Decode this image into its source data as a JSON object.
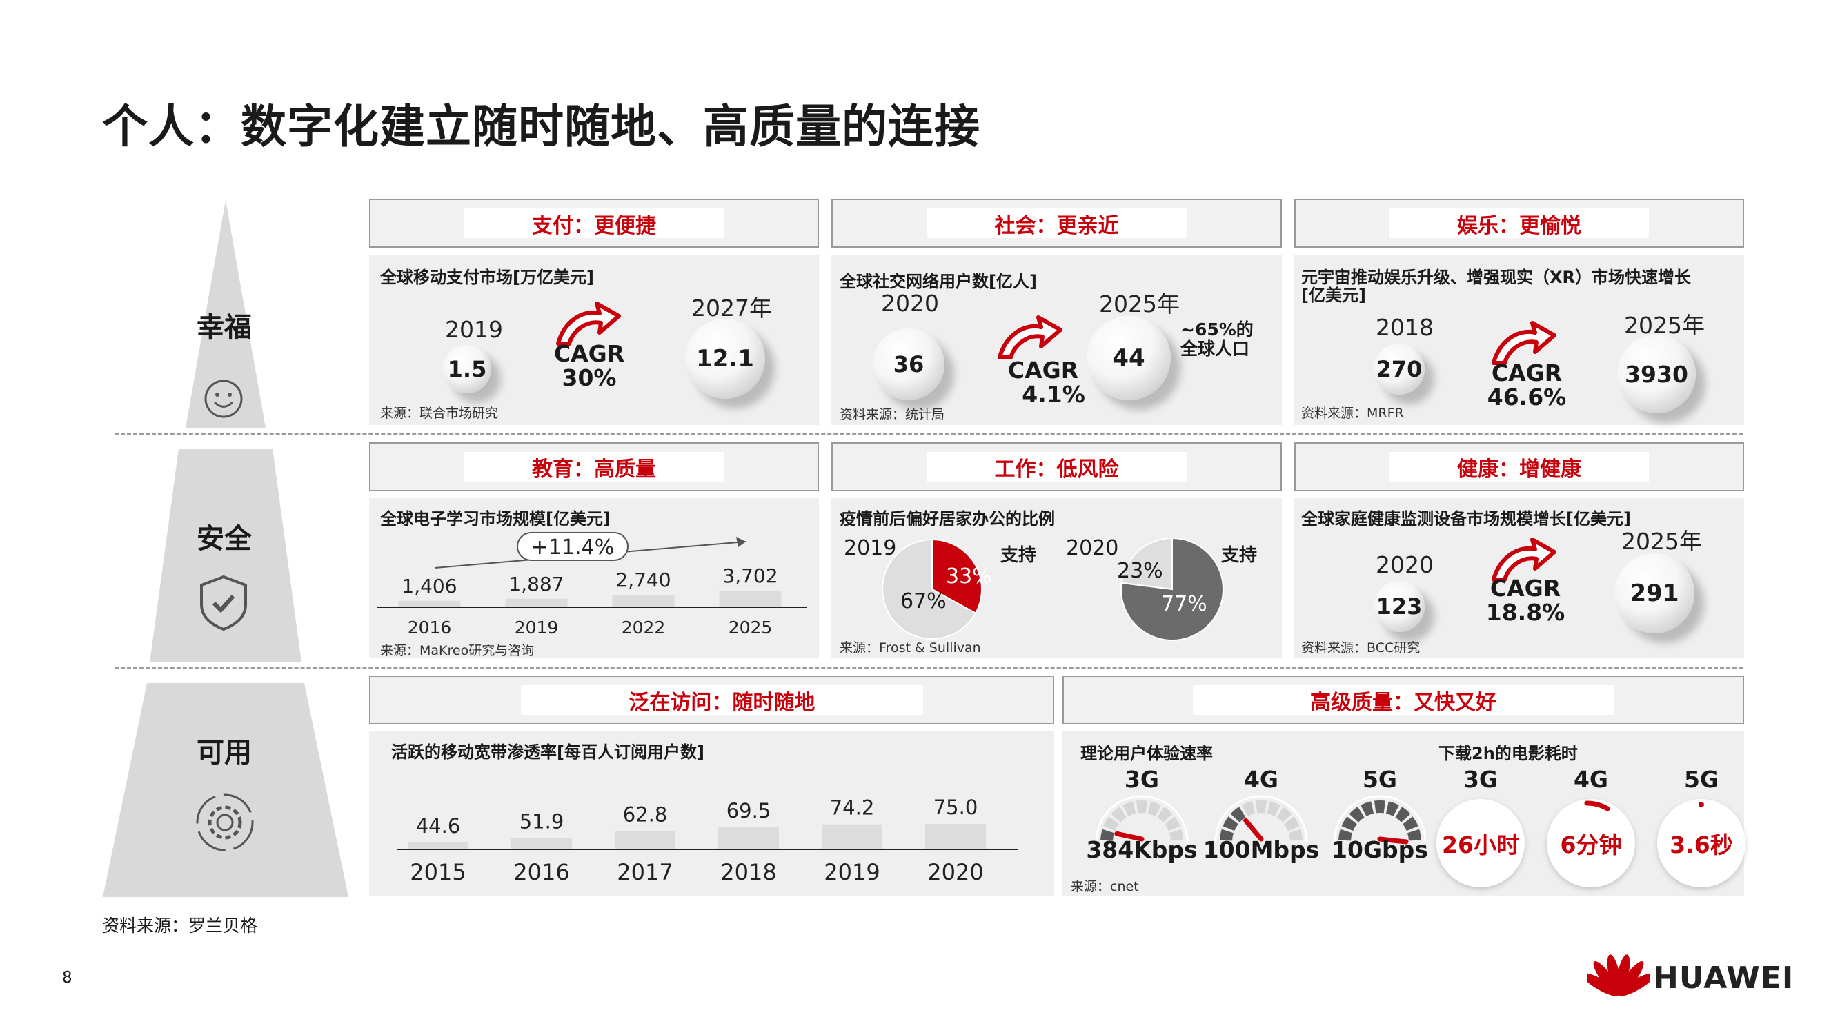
{
  "page_title": "个人：数字化建立随时随地、高质量的连接",
  "pyramid": [
    {
      "label": "幸福",
      "icon": "smiley-icon"
    },
    {
      "label": "安全",
      "icon": "shield-check-icon"
    },
    {
      "label": "可用",
      "icon": "gear-cycle-icon"
    }
  ],
  "cards": {
    "pay": {
      "header": "支付：更便捷",
      "title": "全球移动支付市场[万亿美元]",
      "y1": "2019",
      "v1": "1.5",
      "y2": "2027年",
      "v2": "12.1",
      "cagr_label": "CAGR",
      "cagr_value": "30%",
      "source": "来源：联合市场研究"
    },
    "social": {
      "header": "社会：更亲近",
      "title": "全球社交网络用户数[亿人]",
      "y1": "2020",
      "v1": "36",
      "y2": "2025年",
      "v2": "44",
      "cagr_label": "CAGR",
      "cagr_value": "4.1%",
      "note_line1": "~65%的",
      "note_line2": "全球人口",
      "source": "资料来源：统计局"
    },
    "ent": {
      "header": "娱乐：更愉悦",
      "title_line1": "元宇宙推动娱乐升级、增强现实（XR）市场快速增长",
      "title_line2": "[亿美元]",
      "y1": "2018",
      "v1": "270",
      "y2": "2025年",
      "v2": "3930",
      "cagr_label": "CAGR",
      "cagr_value": "46.6%",
      "source": "资料来源：MRFR"
    },
    "edu": {
      "header": "教育：高质量",
      "title": "全球电子学习市场规模[亿美元]",
      "growth": "+11.4%",
      "source": "来源：MaKreo研究与咨询"
    },
    "work": {
      "header": "工作：低风险",
      "title": "疫情前后偏好居家办公的比例",
      "pie1_year": "2019",
      "pie1_support": "支持",
      "pie1_yes": "33%",
      "pie1_no": "67%",
      "pie2_year": "2020",
      "pie2_support": "支持",
      "pie2_yes": "77%",
      "pie2_no": "23%",
      "source": "来源：Frost & Sullivan"
    },
    "health": {
      "header": "健康：增健康",
      "title": "全球家庭健康监测设备市场规模增长[亿美元]",
      "y1": "2020",
      "v1": "123",
      "y2": "2025年",
      "v2": "291",
      "cagr_label": "CAGR",
      "cagr_value": "18.8%",
      "source": "资料来源：BCC研究"
    },
    "access": {
      "header": "泛在访问：随时随地",
      "title": "活跃的移动宽带渗透率[每百人订阅用户数]"
    },
    "quality": {
      "header": "高级质量：又快又好",
      "speed_title": "理论用户体验速率",
      "movie_title": "下载2h的电影耗时",
      "gauges": [
        {
          "gen": "3G",
          "speed": "384Kbps",
          "level": 0.1
        },
        {
          "gen": "4G",
          "speed": "100Mbps",
          "level": 0.3
        },
        {
          "gen": "5G",
          "speed": "10Gbps",
          "level": 1.0
        }
      ],
      "movie": [
        {
          "gen": "3G",
          "time": "26小时"
        },
        {
          "gen": "4G",
          "time": "6分钟"
        },
        {
          "gen": "5G",
          "time": "3.6秒"
        }
      ],
      "source": "来源：cnet"
    }
  },
  "chart_data": [
    {
      "type": "bar",
      "title": "全球电子学习市场规模[亿美元]",
      "categories": [
        "2016",
        "2019",
        "2022",
        "2025"
      ],
      "values": [
        1406,
        1887,
        2740,
        3702
      ],
      "value_labels": [
        "1,406",
        "1,887",
        "2,740",
        "3,702"
      ],
      "annotation": "+11.4%"
    },
    {
      "type": "pie",
      "title": "疫情前后偏好居家办公的比例",
      "charts": [
        {
          "label": "2019",
          "slices": [
            {
              "name": "支持",
              "value": 33
            },
            {
              "name": "",
              "value": 67
            }
          ]
        },
        {
          "label": "2020",
          "slices": [
            {
              "name": "支持",
              "value": 77
            },
            {
              "name": "",
              "value": 23
            }
          ]
        }
      ]
    },
    {
      "type": "bar",
      "title": "活跃的移动宽带渗透率[每百人订阅用户数]",
      "categories": [
        "2015",
        "2016",
        "2017",
        "2018",
        "2019",
        "2020"
      ],
      "values": [
        44.6,
        51.9,
        62.8,
        69.5,
        74.2,
        75.0
      ],
      "value_labels": [
        "44.6",
        "51.9",
        "62.8",
        "69.5",
        "74.2",
        "75.0"
      ]
    }
  ],
  "colors": {
    "accent": "#c8000b",
    "panel": "#efefef",
    "pyramid": "#d9d9d9",
    "gauge_dark": "#5a5a5a"
  },
  "footer": {
    "source": "资料来源：罗兰贝格",
    "page_number": "8",
    "brand": "HUAWEI"
  }
}
